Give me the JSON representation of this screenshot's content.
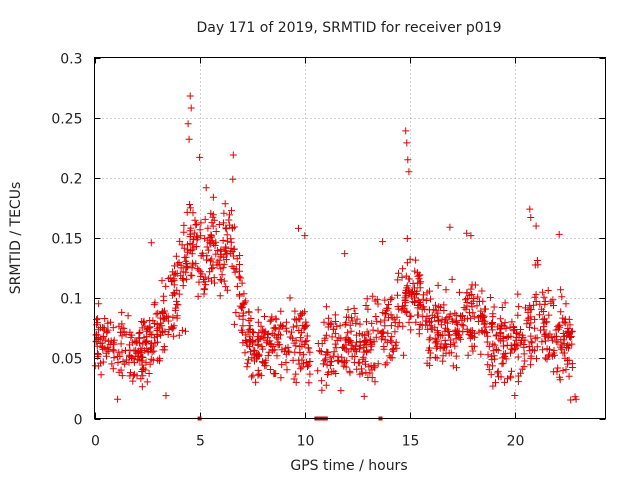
{
  "chart_data": {
    "type": "scatter",
    "title": "Day 171 of 2019, SRMTID for receiver p019",
    "xlabel": "GPS time / hours",
    "ylabel": "SRMTID / TECUs",
    "xlim": [
      0,
      24.3
    ],
    "ylim": [
      0,
      0.3
    ],
    "x_ticks": [
      0,
      5,
      10,
      15,
      20
    ],
    "y_ticks": [
      0,
      0.05,
      0.1,
      0.15,
      0.2,
      0.25,
      0.3
    ],
    "x_tick_labels": [
      "0",
      "5",
      "10",
      "15",
      "20"
    ],
    "y_tick_labels": [
      "0",
      "0.05",
      "0.1",
      "0.15",
      "0.2",
      "0.25",
      "0.3"
    ],
    "grid": true,
    "marker": "plus",
    "series_color": "#e00000",
    "trend_profile": {
      "description": "approximate median SRMTID (TECU) vs GPS hour",
      "x": [
        0,
        0.5,
        1,
        1.5,
        2,
        2.5,
        3,
        3.5,
        4,
        4.4,
        4.7,
        5,
        5.5,
        6,
        6.5,
        6.8,
        7.2,
        7.6,
        8,
        9,
        10,
        10.2,
        10.6,
        11,
        12,
        13,
        13.6,
        14,
        14.5,
        15,
        15.5,
        16,
        16.5,
        17,
        18,
        18.5,
        19,
        20,
        20.5,
        21,
        21.5,
        22,
        22.7
      ],
      "y": [
        0.065,
        0.062,
        0.06,
        0.058,
        0.055,
        0.06,
        0.075,
        0.09,
        0.11,
        0.14,
        0.155,
        0.13,
        0.14,
        0.13,
        0.15,
        0.12,
        0.07,
        0.055,
        0.06,
        0.065,
        0.07,
        0.05,
        0.055,
        0.06,
        0.06,
        0.065,
        0.07,
        0.075,
        0.09,
        0.1,
        0.1,
        0.075,
        0.07,
        0.075,
        0.08,
        0.07,
        0.055,
        0.065,
        0.07,
        0.09,
        0.075,
        0.065,
        0.06
      ]
    },
    "spread_profile": {
      "description": "approximate scatter half-width (TECU) vs GPS hour",
      "x": [
        0,
        3,
        4.4,
        5,
        6.5,
        7.2,
        10,
        14.5,
        15.5,
        17,
        20.5,
        21,
        22.7
      ],
      "y": [
        0.018,
        0.02,
        0.035,
        0.03,
        0.03,
        0.018,
        0.022,
        0.025,
        0.022,
        0.02,
        0.022,
        0.03,
        0.022
      ]
    },
    "gaps_hours": [
      [
        10.3,
        10.6
      ],
      [
        13.5,
        13.6
      ],
      [
        22.75,
        24.3
      ]
    ],
    "n_points_approx": 1400,
    "zero_value_points": [
      {
        "x": 5.0,
        "y": 0
      },
      {
        "x": 10.55,
        "y": 0
      },
      {
        "x": 10.65,
        "y": 0
      },
      {
        "x": 10.75,
        "y": 0
      },
      {
        "x": 10.85,
        "y": 0
      },
      {
        "x": 10.95,
        "y": 0
      },
      {
        "x": 11.0,
        "y": 0
      },
      {
        "x": 13.6,
        "y": 0
      }
    ],
    "outliers": [
      {
        "x": 4.55,
        "y": 0.268
      },
      {
        "x": 4.6,
        "y": 0.258
      },
      {
        "x": 4.45,
        "y": 0.245
      },
      {
        "x": 4.5,
        "y": 0.232
      },
      {
        "x": 6.6,
        "y": 0.219
      },
      {
        "x": 5.0,
        "y": 0.217
      },
      {
        "x": 14.8,
        "y": 0.239
      },
      {
        "x": 14.85,
        "y": 0.229
      },
      {
        "x": 14.9,
        "y": 0.215
      },
      {
        "x": 14.95,
        "y": 0.205
      },
      {
        "x": 20.7,
        "y": 0.174
      },
      {
        "x": 20.75,
        "y": 0.167
      },
      {
        "x": 21.0,
        "y": 0.16
      },
      {
        "x": 2.7,
        "y": 0.146
      },
      {
        "x": 9.7,
        "y": 0.158
      },
      {
        "x": 10.0,
        "y": 0.152
      },
      {
        "x": 11.9,
        "y": 0.137
      },
      {
        "x": 13.7,
        "y": 0.147
      },
      {
        "x": 17.7,
        "y": 0.154
      },
      {
        "x": 17.9,
        "y": 0.152
      },
      {
        "x": 16.9,
        "y": 0.159
      },
      {
        "x": 22.1,
        "y": 0.153
      },
      {
        "x": 3.4,
        "y": 0.019
      },
      {
        "x": 1.1,
        "y": 0.016
      },
      {
        "x": 22.9,
        "y": 0.016
      },
      {
        "x": 22.85,
        "y": 0.018
      }
    ]
  }
}
